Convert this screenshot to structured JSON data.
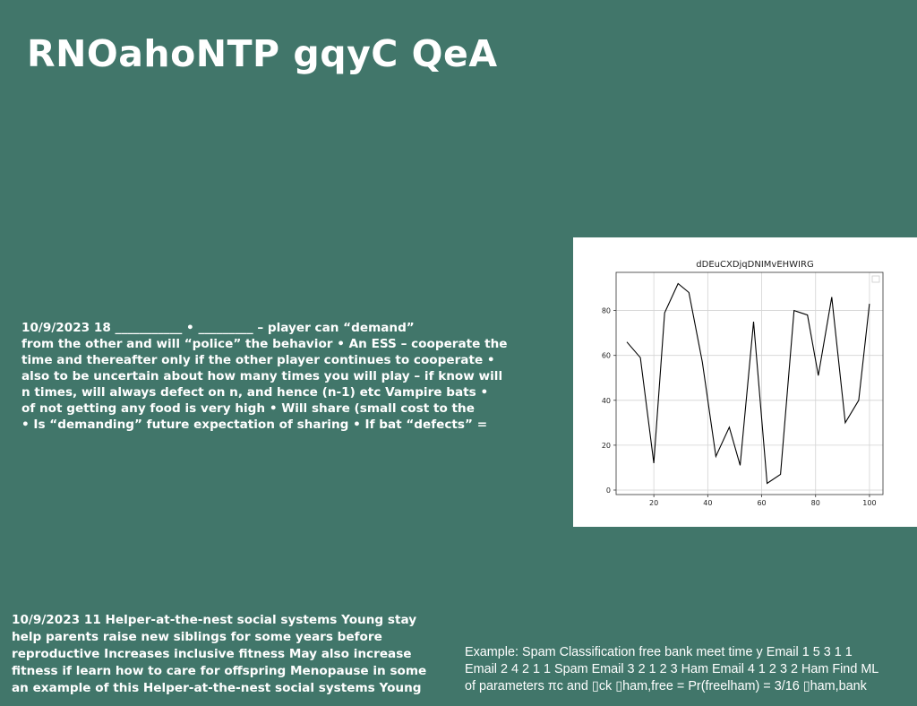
{
  "slide": {
    "title": "RNOahoNTP gqyC QeA"
  },
  "paragraph1": {
    "lines": [
      "10/9/2023 18 ___________ • _________ – player can “demand”",
      "from the other  and will “police” the behavior • An ESS – cooperate the",
      "time and thereafter only if the other player continues to cooperate •",
      "also to be uncertain about how many times you will play – if know will",
      "n times, will always defect on n, and hence (n-1) etc Vampire bats •",
      "of not getting any food is very  high • Will share (small cost to the",
      "• Is “demanding” future expectation of sharing • If bat “defects” ="
    ]
  },
  "paragraph2": {
    "lines": [
      "10/9/2023 11 Helper-at-the-nest social systems Young stay",
      "help parents raise new siblings for some years before",
      "reproductive Increases inclusive fitness May also increase",
      "fitness if learn how to care for offspring Menopause in some",
      "an example of this Helper-at-the-nest social systems Young"
    ]
  },
  "paragraph3": {
    "lines": [
      "Example: Spam Classification free bank meet time y Email 1 5 3 1 1",
      "Email 2 4 2 1 1 Spam Email 3 2 1 2 3 Ham Email 4 1 2 3 2 Ham Find ML",
      "of parameters πc and ▯ck ▯ham,free = Pr(freelham) = 3/16 ▯ham,bank"
    ]
  },
  "chart_data": {
    "type": "line",
    "title": "dDEuCXDjqDNIMvEHWIRG",
    "xlabel": "",
    "ylabel": "",
    "x": [
      10,
      15,
      20,
      24,
      29,
      33,
      38,
      43,
      48,
      52,
      57,
      62,
      67,
      72,
      77,
      81,
      86,
      91,
      96,
      100
    ],
    "values": [
      66,
      59,
      12,
      79,
      92,
      88,
      57,
      15,
      28,
      11,
      75,
      3,
      7,
      80,
      78,
      51,
      86,
      30,
      40,
      83
    ],
    "xlim": [
      6,
      105
    ],
    "ylim": [
      -2,
      97
    ],
    "xticks": [
      "20",
      "40",
      "60",
      "80",
      "100"
    ],
    "yticks": [
      "0",
      "20",
      "40",
      "60",
      "80"
    ],
    "grid": true,
    "line_color": "#000000",
    "legend": "top-right"
  }
}
